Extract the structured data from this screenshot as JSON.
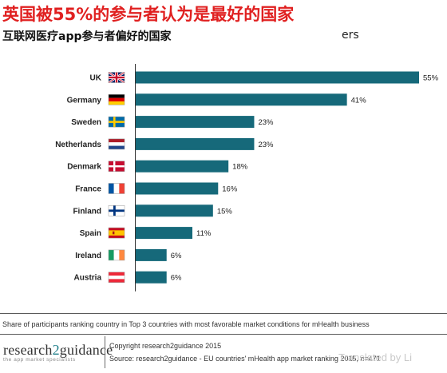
{
  "header": {
    "title": "英国被55%的参与者认为是最好的国家",
    "subtitle": "互联网医疗app参与者偏好的国家",
    "subtitle_tail": "ers"
  },
  "chart_data": {
    "type": "bar",
    "orientation": "horizontal",
    "categories": [
      "UK",
      "Germany",
      "Sweden",
      "Netherlands",
      "Denmark",
      "France",
      "Finland",
      "Spain",
      "Ireland",
      "Austria"
    ],
    "values": [
      55,
      41,
      23,
      23,
      18,
      16,
      15,
      11,
      6,
      6
    ],
    "value_labels": [
      "55%",
      "41%",
      "23%",
      "23%",
      "18%",
      "16%",
      "15%",
      "11%",
      "6%",
      "6%"
    ],
    "flags": [
      "uk-flag",
      "germany-flag",
      "sweden-flag",
      "netherlands-flag",
      "denmark-flag",
      "france-flag",
      "finland-flag",
      "spain-flag",
      "ireland-flag",
      "austria-flag"
    ],
    "xlim": [
      0,
      56
    ],
    "bar_color": "#16697a",
    "grid": false,
    "legend": "none"
  },
  "footer": {
    "note": "Share of participants ranking country in Top 3 countries with most favorable market conditions for mHealth business",
    "logo_text_a": "research",
    "logo_text_b": "2",
    "logo_text_c": "guidance",
    "logo_tagline": "the app market specialists",
    "copyright": "Copyright research2guidance 2015",
    "source": "Source: research2guidance - EU countries' mHealth app market ranking 2015, n=471",
    "watermark": "Translated by Li"
  }
}
